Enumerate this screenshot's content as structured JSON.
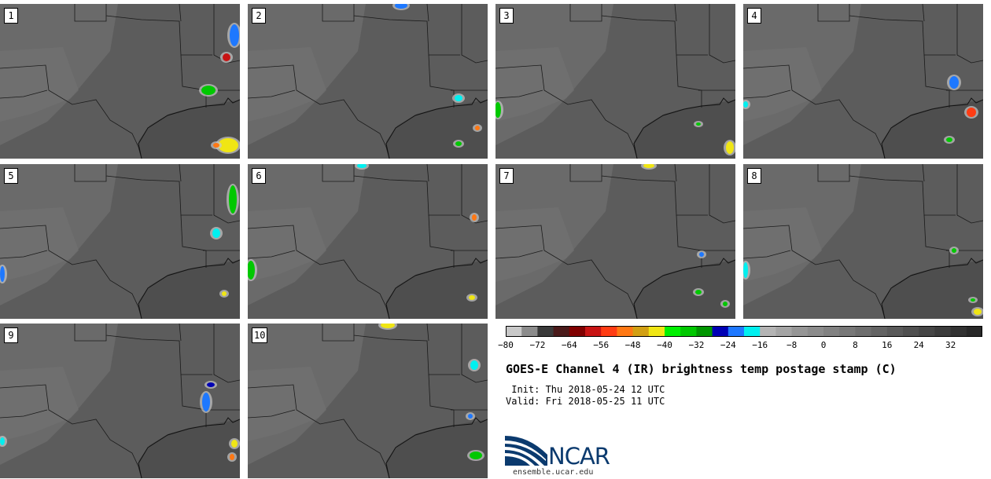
{
  "panels": [
    {
      "label": "1"
    },
    {
      "label": "2"
    },
    {
      "label": "3"
    },
    {
      "label": "4"
    },
    {
      "label": "5"
    },
    {
      "label": "6"
    },
    {
      "label": "7"
    },
    {
      "label": "8"
    },
    {
      "label": "9"
    },
    {
      "label": "10"
    }
  ],
  "colorbar": {
    "colors": [
      "#c8c8c8",
      "#8c8c8c",
      "#3a3a3a",
      "#4a1a1a",
      "#800000",
      "#c81414",
      "#ff3c14",
      "#ff7814",
      "#d2a014",
      "#f0e614",
      "#00f000",
      "#00c800",
      "#009600",
      "#0000b4",
      "#1e78ff",
      "#00f0f0",
      "#b4b4b4",
      "#a5a5a5",
      "#969696",
      "#8c8c8c",
      "#828282",
      "#787878",
      "#6e6e6e",
      "#646464",
      "#5a5a5a",
      "#505050",
      "#464646",
      "#3c3c3c",
      "#323232",
      "#282828"
    ],
    "tick_labels": [
      "−80",
      "−72",
      "−64",
      "−56",
      "−48",
      "−40",
      "−32",
      "−24",
      "−16",
      "−8",
      "0",
      "8",
      "16",
      "24",
      "32"
    ]
  },
  "title": "GOES-E Channel 4 (IR) brightness temp postage stamp (C)",
  "init_line": " Init: Thu 2018-05-24 12 UTC",
  "valid_line": "Valid: Fri 2018-05-25 11 UTC",
  "logo": {
    "name": "NCAR",
    "url": "ensemble.ucar.edu",
    "colors": {
      "wave": "#1a6fb0",
      "text": "#0b3a6e"
    }
  }
}
